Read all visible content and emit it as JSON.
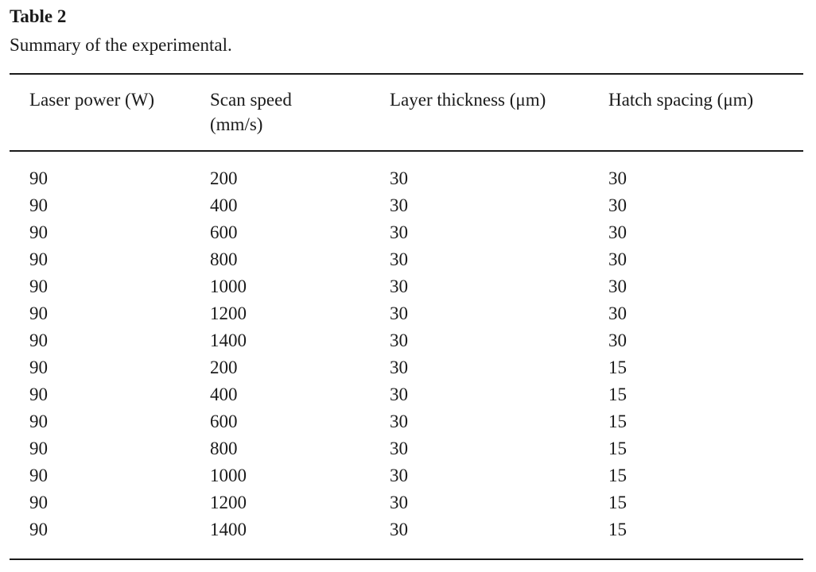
{
  "table": {
    "label": "Table 2",
    "caption": "Summary of the experimental.",
    "columns": [
      "Laser power (W)",
      "Scan speed\n(mm/s)",
      "Layer thickness (μm)",
      "Hatch spacing (μm)"
    ],
    "rows": [
      [
        "90",
        "200",
        "30",
        "30"
      ],
      [
        "90",
        "400",
        "30",
        "30"
      ],
      [
        "90",
        "600",
        "30",
        "30"
      ],
      [
        "90",
        "800",
        "30",
        "30"
      ],
      [
        "90",
        "1000",
        "30",
        "30"
      ],
      [
        "90",
        "1200",
        "30",
        "30"
      ],
      [
        "90",
        "1400",
        "30",
        "30"
      ],
      [
        "90",
        "200",
        "30",
        "15"
      ],
      [
        "90",
        "400",
        "30",
        "15"
      ],
      [
        "90",
        "600",
        "30",
        "15"
      ],
      [
        "90",
        "800",
        "30",
        "15"
      ],
      [
        "90",
        "1000",
        "30",
        "15"
      ],
      [
        "90",
        "1200",
        "30",
        "15"
      ],
      [
        "90",
        "1400",
        "30",
        "15"
      ]
    ]
  }
}
